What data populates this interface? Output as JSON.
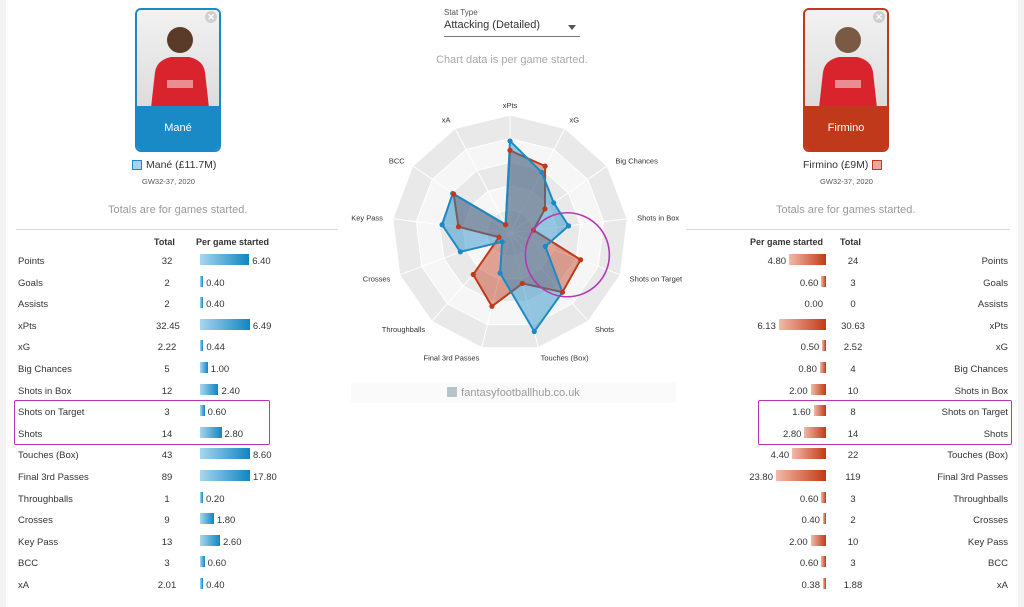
{
  "left_player": {
    "card_name": "Mané",
    "label": "Mané (£11.7M)",
    "gw": "GW32-37, 2020",
    "color": "#1a8ac6"
  },
  "right_player": {
    "card_name": "Firmino",
    "label": "Firmino (£9M)",
    "gw": "GW32-37, 2020",
    "color": "#c0391b"
  },
  "stat_type": {
    "label": "Stat Type",
    "value": "Attacking (Detailed)"
  },
  "chart_note": "Chart data is per game started.",
  "totals_note": "Totals are for games started.",
  "table_headers": {
    "total": "Total",
    "per_game": "Per game started"
  },
  "watermark": "fantasyfootballhub.co.uk",
  "left_rows": [
    {
      "stat": "Points",
      "total": "32",
      "pg": "6.40"
    },
    {
      "stat": "Goals",
      "total": "2",
      "pg": "0.40"
    },
    {
      "stat": "Assists",
      "total": "2",
      "pg": "0.40"
    },
    {
      "stat": "xPts",
      "total": "32.45",
      "pg": "6.49"
    },
    {
      "stat": "xG",
      "total": "2.22",
      "pg": "0.44"
    },
    {
      "stat": "Big Chances",
      "total": "5",
      "pg": "1.00"
    },
    {
      "stat": "Shots in Box",
      "total": "12",
      "pg": "2.40"
    },
    {
      "stat": "Shots on Target",
      "total": "3",
      "pg": "0.60"
    },
    {
      "stat": "Shots",
      "total": "14",
      "pg": "2.80"
    },
    {
      "stat": "Touches (Box)",
      "total": "43",
      "pg": "8.60"
    },
    {
      "stat": "Final 3rd Passes",
      "total": "89",
      "pg": "17.80"
    },
    {
      "stat": "Throughballs",
      "total": "1",
      "pg": "0.20"
    },
    {
      "stat": "Crosses",
      "total": "9",
      "pg": "1.80"
    },
    {
      "stat": "Key Pass",
      "total": "13",
      "pg": "2.60"
    },
    {
      "stat": "BCC",
      "total": "3",
      "pg": "0.60"
    },
    {
      "stat": "xA",
      "total": "2.01",
      "pg": "0.40"
    }
  ],
  "right_rows": [
    {
      "stat": "Points",
      "total": "24",
      "pg": "4.80"
    },
    {
      "stat": "Goals",
      "total": "3",
      "pg": "0.60"
    },
    {
      "stat": "Assists",
      "total": "0",
      "pg": "0.00"
    },
    {
      "stat": "xPts",
      "total": "30.63",
      "pg": "6.13"
    },
    {
      "stat": "xG",
      "total": "2.52",
      "pg": "0.50"
    },
    {
      "stat": "Big Chances",
      "total": "4",
      "pg": "0.80"
    },
    {
      "stat": "Shots in Box",
      "total": "10",
      "pg": "2.00"
    },
    {
      "stat": "Shots on Target",
      "total": "8",
      "pg": "1.60"
    },
    {
      "stat": "Shots",
      "total": "14",
      "pg": "2.80"
    },
    {
      "stat": "Touches (Box)",
      "total": "22",
      "pg": "4.40"
    },
    {
      "stat": "Final 3rd Passes",
      "total": "119",
      "pg": "23.80"
    },
    {
      "stat": "Throughballs",
      "total": "3",
      "pg": "0.60"
    },
    {
      "stat": "Crosses",
      "total": "2",
      "pg": "0.40"
    },
    {
      "stat": "Key Pass",
      "total": "10",
      "pg": "2.00"
    },
    {
      "stat": "BCC",
      "total": "3",
      "pg": "0.60"
    },
    {
      "stat": "xA",
      "total": "1.88",
      "pg": "0.38"
    }
  ],
  "highlight_stats": [
    "Shots on Target",
    "Shots"
  ],
  "highlight_color": "#b437b3",
  "chart_data": {
    "type": "radar",
    "axes": [
      "xPts",
      "xG",
      "Big Chances",
      "Shots in Box",
      "Shots on Target",
      "Shots",
      "Touches (Box)",
      "Final 3rd Passes",
      "Throughballs",
      "Crosses",
      "Key Pass",
      "BCC",
      "xA"
    ],
    "rlim": [
      0,
      1
    ],
    "series": [
      {
        "player": "Mané",
        "color": "#1a8ac6",
        "values": [
          0.78,
          0.58,
          0.45,
          0.5,
          0.32,
          0.67,
          0.86,
          0.35,
          0.1,
          0.45,
          0.58,
          0.59,
          0.08
        ]
      },
      {
        "player": "Firmino",
        "color": "#c0391b",
        "values": [
          0.7,
          0.64,
          0.36,
          0.2,
          0.64,
          0.67,
          0.44,
          0.64,
          0.47,
          0.1,
          0.44,
          0.58,
          0.08
        ]
      }
    ]
  }
}
